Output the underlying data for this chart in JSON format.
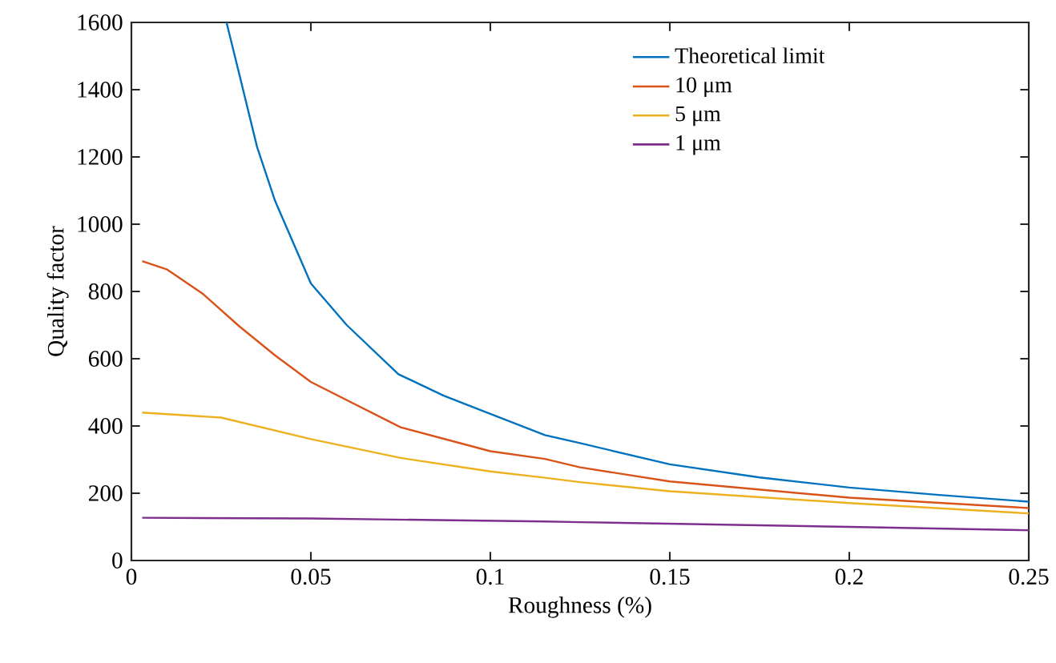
{
  "chart_data": {
    "type": "line",
    "xlabel": "Roughness (%)",
    "ylabel": "Quality factor",
    "xlim": [
      0,
      0.25
    ],
    "ylim": [
      0,
      1600
    ],
    "xticks": [
      0,
      0.05,
      0.1,
      0.15,
      0.2,
      0.25
    ],
    "yticks": [
      0,
      200,
      400,
      600,
      800,
      1000,
      1200,
      1400,
      1600
    ],
    "legend": "top right",
    "series": [
      {
        "name": "Theoretical limit",
        "color": "#0072bd",
        "x": [
          0.0265,
          0.0298,
          0.035,
          0.04,
          0.05,
          0.06,
          0.0744,
          0.087,
          0.1,
          0.1152,
          0.125,
          0.15,
          0.175,
          0.2,
          0.225,
          0.25
        ],
        "values": [
          1600,
          1457,
          1230,
          1070,
          824,
          700,
          554,
          490,
          436,
          373,
          349,
          286,
          247,
          217,
          195,
          175
        ]
      },
      {
        "name": "10 μm",
        "color": "#d95319",
        "x": [
          0.003,
          0.01,
          0.02,
          0.03,
          0.04,
          0.05,
          0.075,
          0.1,
          0.1152,
          0.125,
          0.15,
          0.2,
          0.25
        ],
        "values": [
          890,
          865,
          792,
          697,
          610,
          531,
          396,
          325,
          302,
          277,
          235,
          187,
          156
        ]
      },
      {
        "name": "5 μm",
        "color": "#edb120",
        "x": [
          0.003,
          0.025,
          0.05,
          0.075,
          0.1,
          0.1152,
          0.125,
          0.15,
          0.2,
          0.25
        ],
        "values": [
          440,
          425,
          361,
          305,
          265,
          246,
          233,
          206,
          171,
          140
        ]
      },
      {
        "name": "1 μm",
        "color": "#7e2f8e",
        "x": [
          0.003,
          0.05,
          0.1152,
          0.125,
          0.2,
          0.25
        ],
        "values": [
          127,
          125,
          116,
          114,
          100,
          90
        ]
      }
    ]
  }
}
